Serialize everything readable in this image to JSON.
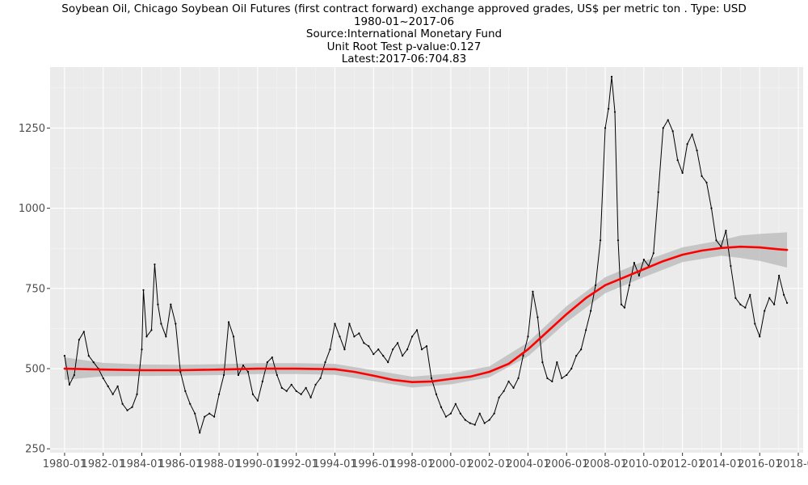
{
  "chart_data": {
    "type": "line",
    "title_lines": [
      "Soybean Oil, Chicago Soybean Oil Futures (first contract forward) exchange approved grades, US$ per metric ton . Type: USD",
      "1980-01~2017-06",
      "Source:International Monetary Fund",
      "Unit Root Test p-value:0.127",
      "Latest:2017-06:704.83"
    ],
    "xlabel": "",
    "ylabel": "",
    "x_ticks": [
      "1980-01",
      "1982-01",
      "1984-01",
      "1986-01",
      "1988-01",
      "1990-01",
      "1992-01",
      "1994-01",
      "1996-01",
      "1998-01",
      "2000-01",
      "2002-01",
      "2004-01",
      "2006-01",
      "2008-01",
      "2010-01",
      "2012-01",
      "2014-01",
      "2016-01",
      "2018-01"
    ],
    "y_ticks": [
      250,
      500,
      750,
      1000,
      1250
    ],
    "xlim": [
      "1979-04",
      "2018-04"
    ],
    "ylim": [
      238,
      1440
    ],
    "grid": true,
    "series": [
      {
        "color": "#000000",
        "points": [
          [
            "1980-01",
            540
          ],
          [
            "1980-04",
            450
          ],
          [
            "1980-07",
            480
          ],
          [
            "1980-10",
            590
          ],
          [
            "1981-01",
            615
          ],
          [
            "1981-04",
            540
          ],
          [
            "1981-07",
            520
          ],
          [
            "1981-10",
            500
          ],
          [
            "1982-01",
            470
          ],
          [
            "1982-04",
            445
          ],
          [
            "1982-07",
            420
          ],
          [
            "1982-10",
            445
          ],
          [
            "1983-01",
            390
          ],
          [
            "1983-04",
            370
          ],
          [
            "1983-07",
            380
          ],
          [
            "1983-10",
            420
          ],
          [
            "1984-01",
            560
          ],
          [
            "1984-02",
            745
          ],
          [
            "1984-04",
            600
          ],
          [
            "1984-07",
            620
          ],
          [
            "1984-09",
            825
          ],
          [
            "1984-11",
            700
          ],
          [
            "1985-01",
            640
          ],
          [
            "1985-04",
            600
          ],
          [
            "1985-07",
            700
          ],
          [
            "1985-10",
            640
          ],
          [
            "1986-01",
            490
          ],
          [
            "1986-04",
            430
          ],
          [
            "1986-07",
            390
          ],
          [
            "1986-10",
            360
          ],
          [
            "1987-01",
            300
          ],
          [
            "1987-04",
            350
          ],
          [
            "1987-07",
            360
          ],
          [
            "1987-10",
            350
          ],
          [
            "1988-01",
            420
          ],
          [
            "1988-04",
            480
          ],
          [
            "1988-07",
            645
          ],
          [
            "1988-10",
            600
          ],
          [
            "1989-01",
            480
          ],
          [
            "1989-04",
            510
          ],
          [
            "1989-07",
            490
          ],
          [
            "1989-10",
            420
          ],
          [
            "1990-01",
            400
          ],
          [
            "1990-04",
            460
          ],
          [
            "1990-07",
            520
          ],
          [
            "1990-10",
            535
          ],
          [
            "1991-01",
            480
          ],
          [
            "1991-04",
            440
          ],
          [
            "1991-07",
            430
          ],
          [
            "1991-10",
            450
          ],
          [
            "1992-01",
            430
          ],
          [
            "1992-04",
            420
          ],
          [
            "1992-07",
            440
          ],
          [
            "1992-10",
            410
          ],
          [
            "1993-01",
            450
          ],
          [
            "1993-04",
            470
          ],
          [
            "1993-07",
            520
          ],
          [
            "1993-10",
            560
          ],
          [
            "1994-01",
            640
          ],
          [
            "1994-04",
            600
          ],
          [
            "1994-07",
            560
          ],
          [
            "1994-10",
            640
          ],
          [
            "1995-01",
            600
          ],
          [
            "1995-04",
            610
          ],
          [
            "1995-07",
            580
          ],
          [
            "1995-10",
            570
          ],
          [
            "1996-01",
            545
          ],
          [
            "1996-04",
            560
          ],
          [
            "1996-07",
            540
          ],
          [
            "1996-10",
            520
          ],
          [
            "1997-01",
            560
          ],
          [
            "1997-04",
            580
          ],
          [
            "1997-07",
            540
          ],
          [
            "1997-10",
            560
          ],
          [
            "1998-01",
            600
          ],
          [
            "1998-04",
            620
          ],
          [
            "1998-07",
            560
          ],
          [
            "1998-10",
            570
          ],
          [
            "1999-01",
            470
          ],
          [
            "1999-04",
            420
          ],
          [
            "1999-07",
            380
          ],
          [
            "1999-10",
            350
          ],
          [
            "2000-01",
            360
          ],
          [
            "2000-04",
            390
          ],
          [
            "2000-07",
            360
          ],
          [
            "2000-10",
            340
          ],
          [
            "2001-01",
            330
          ],
          [
            "2001-04",
            325
          ],
          [
            "2001-07",
            360
          ],
          [
            "2001-10",
            330
          ],
          [
            "2002-01",
            340
          ],
          [
            "2002-04",
            360
          ],
          [
            "2002-07",
            410
          ],
          [
            "2002-10",
            430
          ],
          [
            "2003-01",
            460
          ],
          [
            "2003-04",
            440
          ],
          [
            "2003-07",
            470
          ],
          [
            "2003-10",
            540
          ],
          [
            "2004-01",
            600
          ],
          [
            "2004-04",
            740
          ],
          [
            "2004-07",
            660
          ],
          [
            "2004-10",
            520
          ],
          [
            "2005-01",
            470
          ],
          [
            "2005-04",
            460
          ],
          [
            "2005-07",
            520
          ],
          [
            "2005-10",
            470
          ],
          [
            "2006-01",
            480
          ],
          [
            "2006-04",
            500
          ],
          [
            "2006-07",
            540
          ],
          [
            "2006-10",
            560
          ],
          [
            "2007-01",
            620
          ],
          [
            "2007-04",
            680
          ],
          [
            "2007-07",
            760
          ],
          [
            "2007-10",
            900
          ],
          [
            "2008-01",
            1250
          ],
          [
            "2008-03",
            1310
          ],
          [
            "2008-05",
            1410
          ],
          [
            "2008-07",
            1300
          ],
          [
            "2008-09",
            900
          ],
          [
            "2008-11",
            700
          ],
          [
            "2009-01",
            690
          ],
          [
            "2009-04",
            760
          ],
          [
            "2009-07",
            830
          ],
          [
            "2009-10",
            790
          ],
          [
            "2010-01",
            840
          ],
          [
            "2010-04",
            820
          ],
          [
            "2010-07",
            860
          ],
          [
            "2010-10",
            1050
          ],
          [
            "2011-01",
            1250
          ],
          [
            "2011-04",
            1275
          ],
          [
            "2011-07",
            1240
          ],
          [
            "2011-10",
            1150
          ],
          [
            "2012-01",
            1110
          ],
          [
            "2012-04",
            1200
          ],
          [
            "2012-07",
            1230
          ],
          [
            "2012-10",
            1180
          ],
          [
            "2013-01",
            1100
          ],
          [
            "2013-04",
            1080
          ],
          [
            "2013-07",
            1000
          ],
          [
            "2013-10",
            900
          ],
          [
            "2014-01",
            880
          ],
          [
            "2014-04",
            930
          ],
          [
            "2014-07",
            820
          ],
          [
            "2014-10",
            720
          ],
          [
            "2015-01",
            700
          ],
          [
            "2015-04",
            690
          ],
          [
            "2015-07",
            730
          ],
          [
            "2015-10",
            640
          ],
          [
            "2016-01",
            600
          ],
          [
            "2016-04",
            680
          ],
          [
            "2016-07",
            720
          ],
          [
            "2016-10",
            700
          ],
          [
            "2017-01",
            790
          ],
          [
            "2017-04",
            730
          ],
          [
            "2017-06",
            704.83
          ]
        ]
      },
      {
        "color": "#ff0000",
        "points": [
          [
            "1980-01",
            500
          ],
          [
            "1982-01",
            497
          ],
          [
            "1984-01",
            495
          ],
          [
            "1986-01",
            495
          ],
          [
            "1988-01",
            497
          ],
          [
            "1990-01",
            500
          ],
          [
            "1992-01",
            500
          ],
          [
            "1994-01",
            498
          ],
          [
            "1995-01",
            490
          ],
          [
            "1996-01",
            478
          ],
          [
            "1997-01",
            465
          ],
          [
            "1998-01",
            458
          ],
          [
            "1999-01",
            460
          ],
          [
            "2000-01",
            468
          ],
          [
            "2001-01",
            475
          ],
          [
            "2002-01",
            490
          ],
          [
            "2003-01",
            515
          ],
          [
            "2004-01",
            560
          ],
          [
            "2005-01",
            615
          ],
          [
            "2006-01",
            670
          ],
          [
            "2007-01",
            720
          ],
          [
            "2008-01",
            760
          ],
          [
            "2009-01",
            785
          ],
          [
            "2010-01",
            810
          ],
          [
            "2011-01",
            835
          ],
          [
            "2012-01",
            855
          ],
          [
            "2013-01",
            868
          ],
          [
            "2014-01",
            876
          ],
          [
            "2015-01",
            880
          ],
          [
            "2016-01",
            878
          ],
          [
            "2017-01",
            872
          ],
          [
            "2017-06",
            870
          ]
        ]
      }
    ],
    "confidence_band": {
      "color": "#bebebe",
      "points": [
        [
          "1980-01",
          535,
          465
        ],
        [
          "1982-01",
          518,
          476
        ],
        [
          "1984-01",
          513,
          477
        ],
        [
          "1986-01",
          512,
          478
        ],
        [
          "1988-01",
          514,
          480
        ],
        [
          "1990-01",
          517,
          483
        ],
        [
          "1992-01",
          517,
          483
        ],
        [
          "1994-01",
          515,
          481
        ],
        [
          "1996-01",
          495,
          461
        ],
        [
          "1998-01",
          475,
          441
        ],
        [
          "2000-01",
          485,
          451
        ],
        [
          "2002-01",
          507,
          473
        ],
        [
          "2004-01",
          582,
          538
        ],
        [
          "2006-01",
          695,
          645
        ],
        [
          "2008-01",
          785,
          735
        ],
        [
          "2010-01",
          835,
          785
        ],
        [
          "2012-01",
          878,
          832
        ],
        [
          "2014-01",
          900,
          852
        ],
        [
          "2015-01",
          915,
          845
        ],
        [
          "2016-01",
          920,
          836
        ],
        [
          "2017-06",
          925,
          815
        ]
      ]
    }
  }
}
